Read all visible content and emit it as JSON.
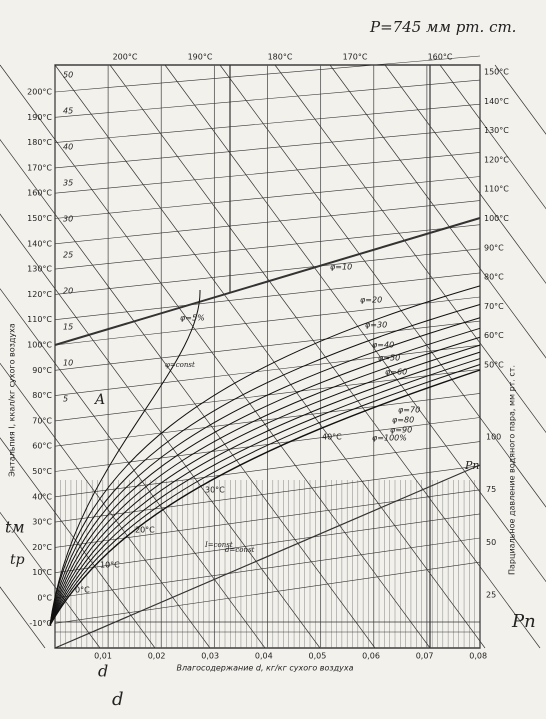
{
  "header": {
    "pressure": "P=745 мм рт. ст."
  },
  "left_axis": {
    "title": "Энтальпия I, ккал/кг сухого воздуха",
    "ticks": [
      "200°C",
      "190°C",
      "180°C",
      "170°C",
      "160°C",
      "150°C",
      "140°C",
      "130°C",
      "120°C",
      "110°C",
      "100°C",
      "90°C",
      "80°C",
      "70°C",
      "60°C",
      "50°C",
      "40°C",
      "30°C",
      "20°C",
      "10°C",
      "0°C",
      "-10°C"
    ]
  },
  "right_axis": {
    "temp_ticks": [
      "150°C",
      "140°C",
      "130°C",
      "120°C",
      "110°C",
      "100°C",
      "90°C",
      "80°C",
      "70°C",
      "60°C",
      "50°C"
    ],
    "title": "Парциальное давление водяного пара, мм рт. ст.",
    "pressure_ticks": [
      "100",
      "75",
      "50",
      "25"
    ]
  },
  "top_axis": {
    "ticks": [
      "200°C",
      "190°C",
      "180°C",
      "170°C",
      "160°C"
    ]
  },
  "bottom_axis": {
    "title": "Влагосодержание d, кг/кг сухого воздуха",
    "ticks": [
      "0,01",
      "0,02",
      "0,03",
      "0,04",
      "0,05",
      "0,06",
      "0,07",
      "0,08"
    ]
  },
  "enthalpy_labels": [
    "50",
    "45",
    "40",
    "35",
    "30",
    "25",
    "20",
    "15",
    "10",
    "5"
  ],
  "phi_labels": [
    "φ=5%",
    "φ=10",
    "φ=20",
    "φ=30",
    "φ=40",
    "φ=50",
    "φ=60",
    "φ=70",
    "φ=80",
    "φ=90",
    "φ=100%"
  ],
  "isotherm_labels": [
    "40°C",
    "30°C",
    "20°C",
    "10°C",
    "0°C"
  ],
  "annotations": {
    "point_a": "A",
    "t_m": "tм",
    "t_p": "tр",
    "d_lower": "d",
    "d_corner": "d",
    "pn_right": "Pn",
    "pn_line": "Pn",
    "i_const": "I=const",
    "d_const": "d=const",
    "phi_const": "φ=const"
  }
}
